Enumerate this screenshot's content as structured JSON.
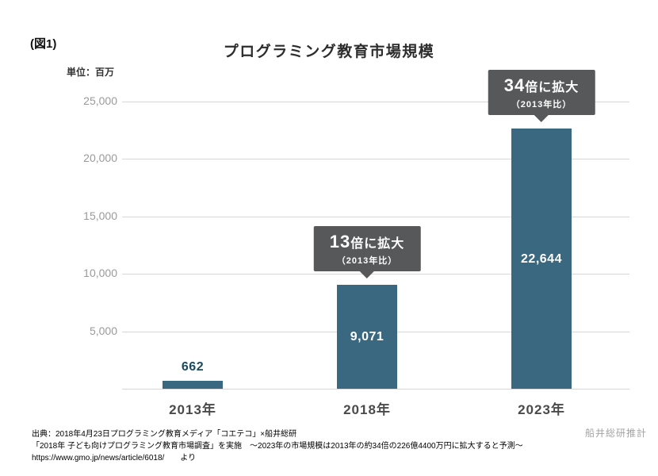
{
  "figure_label": "(図1)",
  "chart_data": {
    "type": "bar",
    "title": "プログラミング教育市場規模",
    "unit_label": "単位：百万",
    "categories": [
      "2013年",
      "2018年",
      "2023年"
    ],
    "values": [
      662,
      9071,
      22644
    ],
    "value_labels": [
      "662",
      "9,071",
      "22,644"
    ],
    "ylim": [
      0,
      25000
    ],
    "yticks": [
      5000,
      10000,
      15000,
      20000,
      25000
    ],
    "ytick_labels": [
      "5,000",
      "10,000",
      "15,000",
      "20,000",
      "25,000"
    ],
    "grid": true,
    "legend": false,
    "annotations": [
      {
        "bar_index": 1,
        "multiplier": "13",
        "suffix": "倍に拡大",
        "note": "（2013年比）"
      },
      {
        "bar_index": 2,
        "multiplier": "34",
        "suffix": "倍に拡大",
        "note": "（2013年比）"
      }
    ]
  },
  "footer": {
    "line1": "出典：2018年4月23日プログラミング教育メディア「コエテコ」×船井総研",
    "line2": "「2018年 子ども向けプログラミング教育市場調査」を実施　〜2023年の市場規模は2013年の約34倍の226億4400万円に拡大すると予測〜",
    "line3": "https://www.gmo.jp/news/article/6018/　　より",
    "credit": "船井総研推計"
  },
  "colors": {
    "bar": "#3a6880",
    "callout_bg": "#57585a",
    "value_outside": "#1b4a63",
    "gridline": "#d7d7d7"
  }
}
